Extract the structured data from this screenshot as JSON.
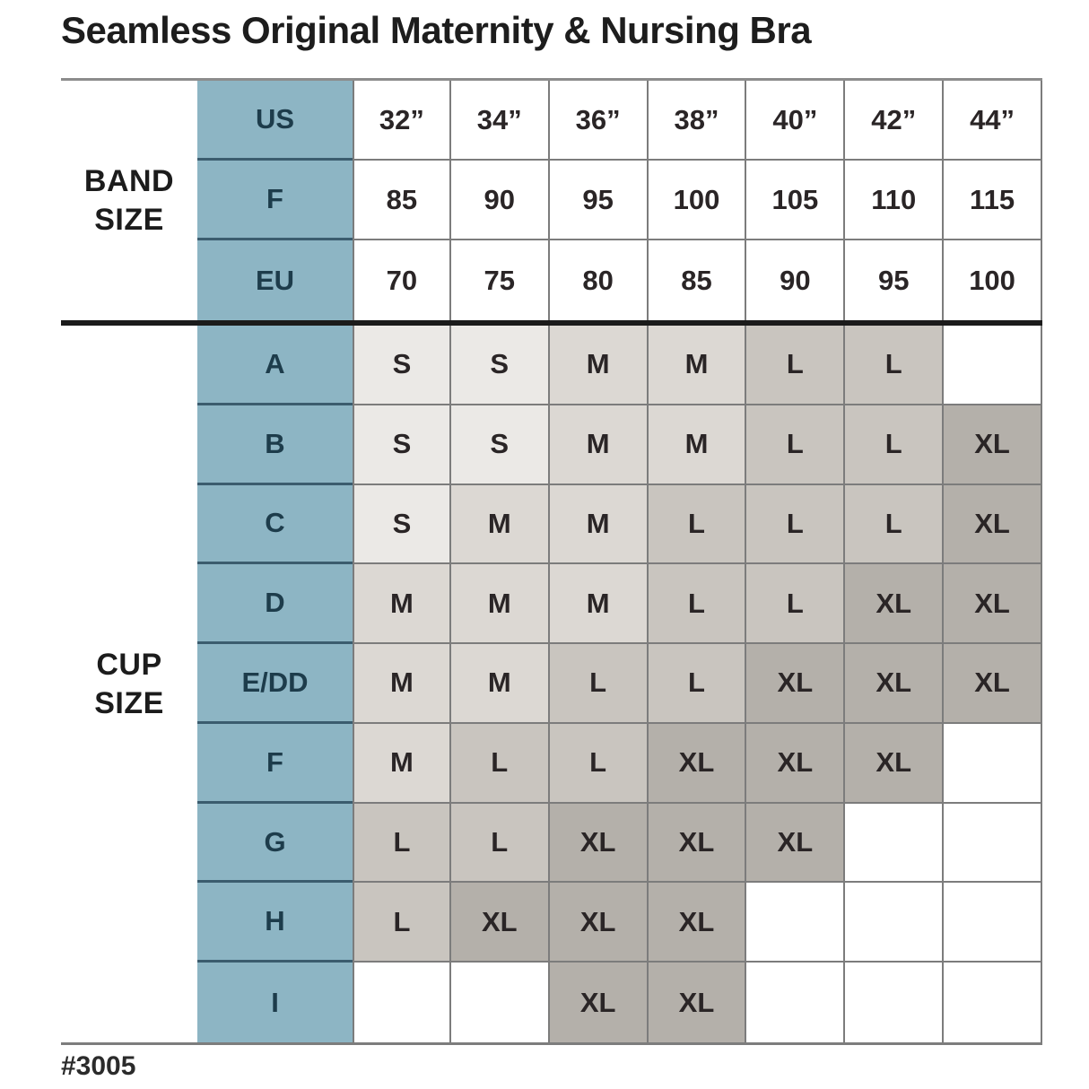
{
  "title": "Seamless Original Maternity & Nursing Bra",
  "footnote": "#3005",
  "colors": {
    "blue": "#8db5c4",
    "navy_text": "#1d3c4b",
    "divider": "#1b1b1b",
    "grid": "#7c7c7c",
    "size_S": "#ebe9e6",
    "size_M": "#dcd8d3",
    "size_L": "#c9c5bf",
    "size_XL": "#b4b0aa",
    "empty": "#ffffff"
  },
  "chart_data": {
    "type": "table",
    "title": "Seamless Original Maternity & Nursing Bra",
    "group_labels": {
      "band": "BAND\nSIZE",
      "cup": "CUP\nSIZE"
    },
    "band_rows": [
      {
        "label": "US",
        "values": [
          "32”",
          "34”",
          "36”",
          "38”",
          "40”",
          "42”",
          "44”"
        ]
      },
      {
        "label": "F",
        "values": [
          "85",
          "90",
          "95",
          "100",
          "105",
          "110",
          "115"
        ]
      },
      {
        "label": "EU",
        "values": [
          "70",
          "75",
          "80",
          "85",
          "90",
          "95",
          "100"
        ]
      }
    ],
    "cup_rows": [
      {
        "label": "A",
        "values": [
          "S",
          "S",
          "M",
          "M",
          "L",
          "L",
          ""
        ]
      },
      {
        "label": "B",
        "values": [
          "S",
          "S",
          "M",
          "M",
          "L",
          "L",
          "XL"
        ]
      },
      {
        "label": "C",
        "values": [
          "S",
          "M",
          "M",
          "L",
          "L",
          "L",
          "XL"
        ]
      },
      {
        "label": "D",
        "values": [
          "M",
          "M",
          "M",
          "L",
          "L",
          "XL",
          "XL"
        ]
      },
      {
        "label": "E/DD",
        "values": [
          "M",
          "M",
          "L",
          "L",
          "XL",
          "XL",
          "XL"
        ]
      },
      {
        "label": "F",
        "values": [
          "M",
          "L",
          "L",
          "XL",
          "XL",
          "XL",
          ""
        ]
      },
      {
        "label": "G",
        "values": [
          "L",
          "L",
          "XL",
          "XL",
          "XL",
          "",
          ""
        ]
      },
      {
        "label": "H",
        "values": [
          "L",
          "XL",
          "XL",
          "XL",
          "",
          "",
          ""
        ]
      },
      {
        "label": "I",
        "values": [
          "",
          "",
          "XL",
          "XL",
          "",
          "",
          ""
        ]
      }
    ]
  }
}
